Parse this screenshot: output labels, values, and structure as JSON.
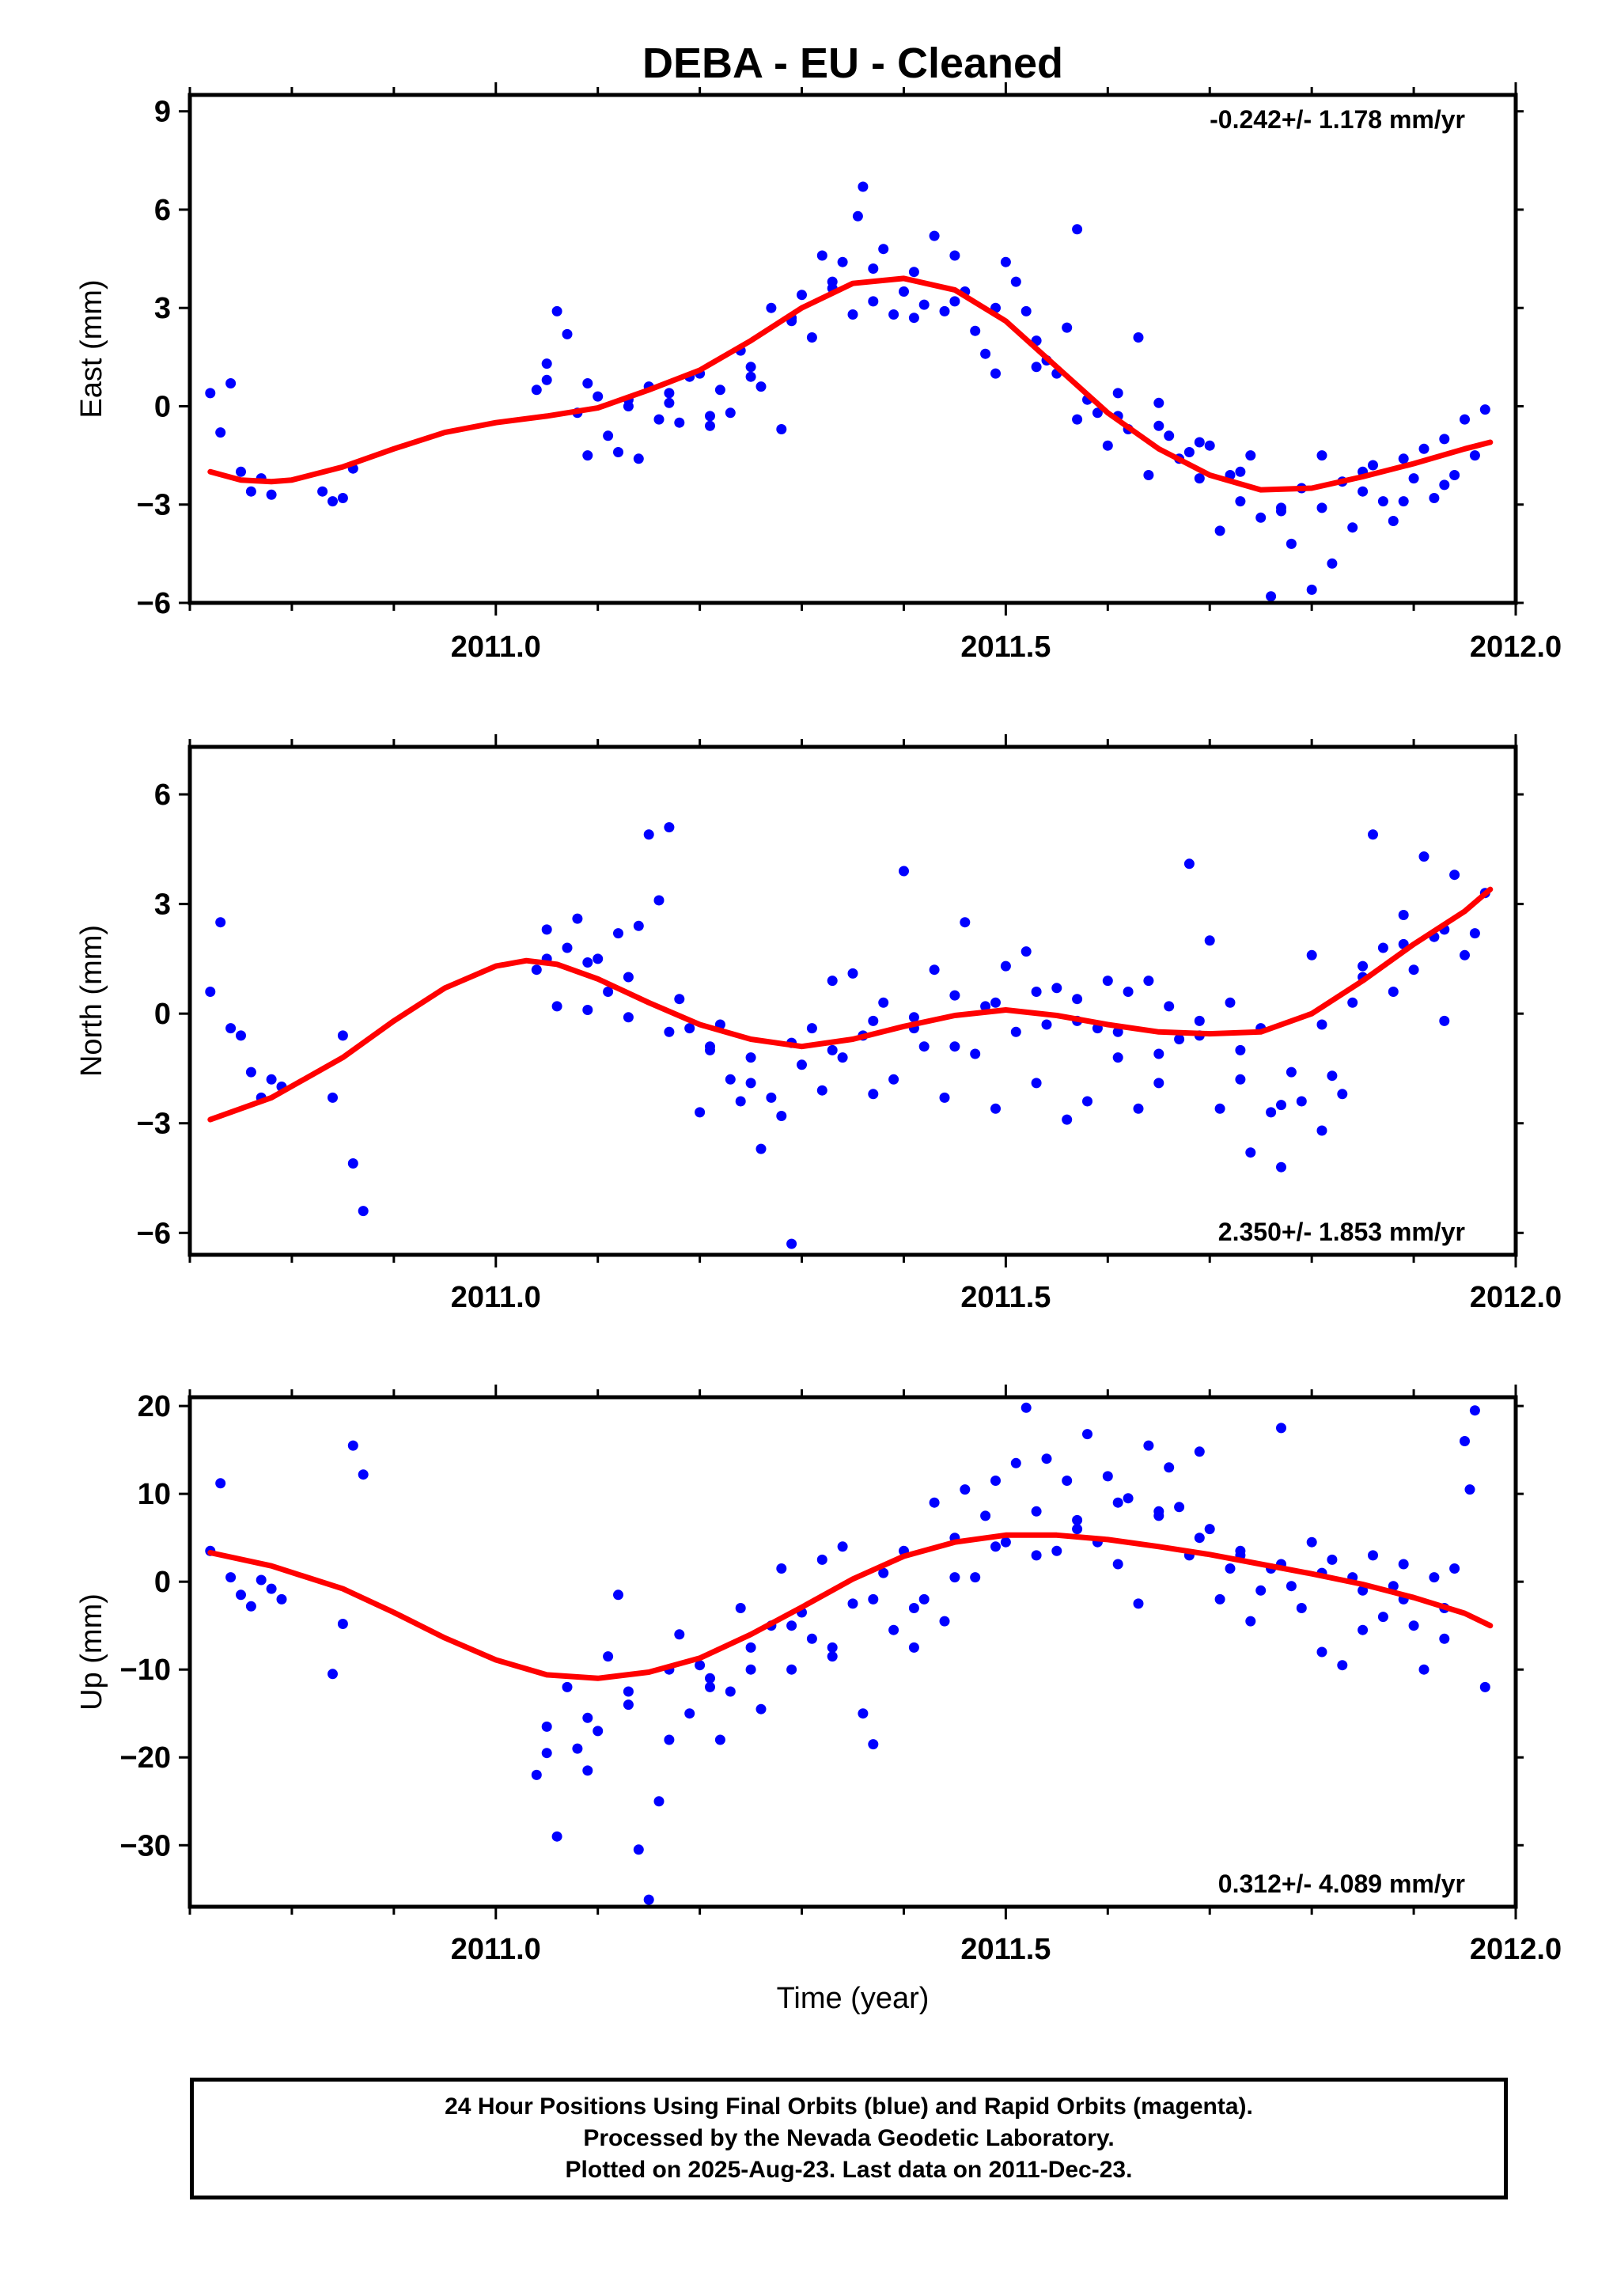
{
  "title": "DEBA  - EU - Cleaned",
  "xlabel": "Time (year)",
  "footer": {
    "line1": "24 Hour Positions Using Final Orbits (blue) and Rapid Orbits (magenta).",
    "line2": "Processed by the Nevada Geodetic Laboratory.",
    "line3": "Plotted on 2025-Aug-23. Last data on 2011-Dec-23."
  },
  "colors": {
    "points": "#0000ff",
    "fit": "#ff0000",
    "axes": "#000000"
  },
  "chart_data": [
    {
      "type": "scatter",
      "title": "DEBA  - EU - Cleaned",
      "ylabel": "East (mm)",
      "rate": "-0.242+/- 1.178 mm/yr",
      "rate_position": "top-right",
      "xlim": [
        2010.7,
        2012.0
      ],
      "ylim": [
        -6,
        9.5
      ],
      "x_ticks": [
        2011.0,
        2011.5,
        2012.0
      ],
      "x_tick_labels": [
        "2011.0",
        "2011.5",
        "2012.0"
      ],
      "y_ticks": [
        -6,
        -3,
        0,
        3,
        6,
        9
      ],
      "y_tick_labels": [
        "−6",
        "−3",
        "0",
        "3",
        "6",
        "9"
      ],
      "grid": false,
      "points": {
        "x": [
          2010.72,
          2010.73,
          2010.74,
          2010.75,
          2010.76,
          2010.77,
          2010.78,
          2010.83,
          2010.84,
          2010.85,
          2010.86,
          2011.04,
          2011.05,
          2011.06,
          2011.07,
          2011.08,
          2011.09,
          2011.1,
          2011.11,
          2011.12,
          2011.13,
          2011.14,
          2011.15,
          2011.16,
          2011.17,
          2011.18,
          2011.19,
          2011.2,
          2011.21,
          2011.22,
          2011.23,
          2011.24,
          2011.25,
          2011.26,
          2011.27,
          2011.28,
          2011.29,
          2011.3,
          2011.31,
          2011.32,
          2011.33,
          2011.34,
          2011.35,
          2011.355,
          2011.36,
          2011.37,
          2011.38,
          2011.39,
          2011.4,
          2011.41,
          2011.42,
          2011.43,
          2011.44,
          2011.45,
          2011.46,
          2011.47,
          2011.48,
          2011.49,
          2011.5,
          2011.51,
          2011.52,
          2011.53,
          2011.54,
          2011.55,
          2011.56,
          2011.57,
          2011.58,
          2011.59,
          2011.6,
          2011.61,
          2011.62,
          2011.63,
          2011.64,
          2011.65,
          2011.66,
          2011.67,
          2011.68,
          2011.69,
          2011.7,
          2011.71,
          2011.72,
          2011.73,
          2011.74,
          2011.75,
          2011.76,
          2011.77,
          2011.78,
          2011.79,
          2011.8,
          2011.81,
          2011.82,
          2011.83,
          2011.84,
          2011.85,
          2011.86,
          2011.87,
          2011.88,
          2011.89,
          2011.9,
          2011.91,
          2011.92,
          2011.93,
          2011.94,
          2011.95,
          2011.96,
          2011.97,
          2011.05,
          2011.09,
          2011.13,
          2011.17,
          2011.21,
          2011.25,
          2011.29,
          2011.33,
          2011.37,
          2011.41,
          2011.45,
          2011.49,
          2011.53,
          2011.57,
          2011.61,
          2011.65,
          2011.69,
          2011.73,
          2011.77,
          2011.81,
          2011.85,
          2011.89,
          2011.93
        ],
        "y": [
          0.4,
          -0.8,
          0.7,
          -2.0,
          -2.6,
          -2.2,
          -2.7,
          -2.6,
          -2.9,
          -2.8,
          -1.9,
          0.5,
          0.8,
          2.9,
          2.2,
          -0.2,
          -1.5,
          0.3,
          -0.9,
          -1.4,
          0.0,
          -1.6,
          0.6,
          -0.4,
          0.1,
          -0.5,
          0.9,
          1.0,
          -0.3,
          0.5,
          -0.2,
          1.7,
          1.2,
          0.6,
          3.0,
          -0.7,
          2.6,
          3.4,
          2.1,
          4.6,
          3.8,
          4.4,
          2.8,
          5.8,
          6.7,
          3.2,
          4.8,
          2.8,
          3.5,
          4.1,
          3.1,
          5.2,
          2.9,
          4.6,
          3.5,
          2.3,
          1.6,
          3.0,
          4.4,
          3.8,
          2.9,
          1.2,
          1.4,
          1.0,
          2.4,
          5.4,
          0.2,
          -0.2,
          -1.2,
          0.4,
          -0.7,
          2.1,
          -2.1,
          0.1,
          -0.9,
          -1.6,
          -1.4,
          -2.2,
          -1.2,
          -3.8,
          -2.1,
          -2.9,
          -1.5,
          -3.4,
          -5.8,
          -3.2,
          -4.2,
          -2.5,
          -5.6,
          -3.1,
          -4.8,
          -2.3,
          -3.7,
          -2.6,
          -1.8,
          -2.9,
          -3.5,
          -1.6,
          -2.2,
          -1.3,
          -2.8,
          -1.0,
          -2.1,
          -0.4,
          -1.5,
          -0.1,
          1.3,
          0.7,
          0.2,
          0.4,
          -0.6,
          0.9,
          2.7,
          3.6,
          4.2,
          2.7,
          3.2,
          1.0,
          2.0,
          -0.4,
          -0.3,
          -0.6,
          -1.1,
          -2.0,
          -3.1,
          -1.5,
          -2.0,
          -2.9,
          -2.4
        ]
      },
      "fit": {
        "x": [
          2010.72,
          2010.75,
          2010.78,
          2010.8,
          2010.85,
          2010.9,
          2010.95,
          2011.0,
          2011.05,
          2011.1,
          2011.15,
          2011.2,
          2011.25,
          2011.3,
          2011.35,
          2011.4,
          2011.45,
          2011.5,
          2011.55,
          2011.6,
          2011.65,
          2011.7,
          2011.75,
          2011.8,
          2011.85,
          2011.9,
          2011.95,
          2011.975
        ],
        "y": [
          -2.0,
          -2.25,
          -2.3,
          -2.25,
          -1.85,
          -1.3,
          -0.8,
          -0.5,
          -0.3,
          -0.05,
          0.5,
          1.1,
          2.0,
          3.0,
          3.75,
          3.9,
          3.55,
          2.6,
          1.2,
          -0.2,
          -1.3,
          -2.1,
          -2.55,
          -2.5,
          -2.15,
          -1.75,
          -1.3,
          -1.1
        ]
      }
    },
    {
      "type": "scatter",
      "ylabel": "North (mm)",
      "rate": "2.350+/- 1.853 mm/yr",
      "rate_position": "bottom-right",
      "xlim": [
        2010.7,
        2012.0
      ],
      "ylim": [
        -6.6,
        7.3
      ],
      "x_ticks": [
        2011.0,
        2011.5,
        2012.0
      ],
      "x_tick_labels": [
        "2011.0",
        "2011.5",
        "2012.0"
      ],
      "y_ticks": [
        -6,
        -3,
        0,
        3,
        6
      ],
      "y_tick_labels": [
        "−6",
        "−3",
        "0",
        "3",
        "6"
      ],
      "grid": false,
      "points": {
        "x": [
          2010.72,
          2010.73,
          2010.74,
          2010.75,
          2010.76,
          2010.77,
          2010.78,
          2010.79,
          2010.84,
          2010.85,
          2010.86,
          2010.87,
          2011.04,
          2011.05,
          2011.06,
          2011.07,
          2011.08,
          2011.09,
          2011.1,
          2011.11,
          2011.12,
          2011.13,
          2011.14,
          2011.15,
          2011.16,
          2011.17,
          2011.18,
          2011.19,
          2011.2,
          2011.21,
          2011.22,
          2011.23,
          2011.24,
          2011.25,
          2011.26,
          2011.27,
          2011.28,
          2011.29,
          2011.3,
          2011.31,
          2011.32,
          2011.33,
          2011.34,
          2011.35,
          2011.36,
          2011.37,
          2011.38,
          2011.39,
          2011.4,
          2011.41,
          2011.42,
          2011.43,
          2011.44,
          2011.45,
          2011.46,
          2011.47,
          2011.48,
          2011.49,
          2011.5,
          2011.51,
          2011.52,
          2011.53,
          2011.54,
          2011.55,
          2011.56,
          2011.57,
          2011.58,
          2011.59,
          2011.6,
          2011.61,
          2011.62,
          2011.63,
          2011.64,
          2011.65,
          2011.66,
          2011.67,
          2011.68,
          2011.69,
          2011.7,
          2011.71,
          2011.72,
          2011.73,
          2011.74,
          2011.75,
          2011.76,
          2011.77,
          2011.78,
          2011.79,
          2011.8,
          2011.81,
          2011.82,
          2011.83,
          2011.84,
          2011.85,
          2011.86,
          2011.87,
          2011.88,
          2011.89,
          2011.9,
          2011.91,
          2011.92,
          2011.93,
          2011.94,
          2011.95,
          2011.96,
          2011.97,
          2011.05,
          2011.09,
          2011.13,
          2011.17,
          2011.21,
          2011.25,
          2011.29,
          2011.33,
          2011.37,
          2011.41,
          2011.45,
          2011.49,
          2011.53,
          2011.57,
          2011.61,
          2011.65,
          2011.69,
          2011.73,
          2011.77,
          2011.81,
          2011.85,
          2011.89,
          2011.93
        ],
        "y": [
          0.6,
          2.5,
          -0.4,
          -0.6,
          -1.6,
          -2.3,
          -1.8,
          -2.0,
          -2.3,
          -0.6,
          -4.1,
          -5.4,
          1.2,
          2.3,
          0.2,
          1.8,
          2.6,
          0.1,
          1.5,
          0.6,
          2.2,
          -0.1,
          2.4,
          4.9,
          3.1,
          5.1,
          0.4,
          -0.4,
          -2.7,
          -1.0,
          -0.3,
          -1.8,
          -2.4,
          -1.2,
          -3.7,
          -2.3,
          -2.8,
          -6.3,
          -1.4,
          -0.4,
          -2.1,
          0.9,
          -1.2,
          1.1,
          -0.6,
          -2.2,
          0.3,
          -1.8,
          3.9,
          -0.1,
          -0.9,
          1.2,
          -2.3,
          0.5,
          2.5,
          -1.1,
          0.2,
          -2.6,
          1.3,
          -0.5,
          1.7,
          -1.9,
          -0.3,
          0.7,
          -2.9,
          0.4,
          -2.4,
          -0.4,
          0.9,
          -1.2,
          0.6,
          -2.6,
          0.9,
          -1.9,
          0.2,
          -0.7,
          4.1,
          -0.2,
          2.0,
          -2.6,
          0.3,
          -1.8,
          -3.8,
          -0.4,
          -2.7,
          -4.2,
          -1.6,
          -2.4,
          1.6,
          -3.2,
          -1.7,
          -2.2,
          0.3,
          1.3,
          4.9,
          1.8,
          0.6,
          2.7,
          1.2,
          4.3,
          2.1,
          -0.2,
          3.8,
          1.6,
          2.2,
          3.3,
          1.5,
          1.4,
          1.0,
          -0.5,
          -0.9,
          -1.9,
          -0.8,
          -1.0,
          -0.2,
          -0.4,
          -0.9,
          0.3,
          0.6,
          -0.2,
          -0.5,
          -1.1,
          -0.6,
          -1.0,
          -2.5,
          -0.3,
          1.0,
          1.9,
          2.3
        ]
      },
      "fit": {
        "x": [
          2010.72,
          2010.78,
          2010.85,
          2010.9,
          2010.95,
          2011.0,
          2011.03,
          2011.06,
          2011.1,
          2011.15,
          2011.2,
          2011.25,
          2011.3,
          2011.35,
          2011.4,
          2011.45,
          2011.5,
          2011.55,
          2011.6,
          2011.65,
          2011.7,
          2011.75,
          2011.8,
          2011.85,
          2011.9,
          2011.95,
          2011.975
        ],
        "y": [
          -2.9,
          -2.3,
          -1.2,
          -0.2,
          0.7,
          1.3,
          1.45,
          1.35,
          0.95,
          0.3,
          -0.3,
          -0.7,
          -0.9,
          -0.7,
          -0.35,
          -0.05,
          0.1,
          -0.05,
          -0.3,
          -0.5,
          -0.55,
          -0.5,
          0.0,
          0.9,
          1.9,
          2.8,
          3.4
        ]
      }
    },
    {
      "type": "scatter",
      "ylabel": "Up (mm)",
      "xlabel": "Time (year)",
      "rate": "0.312+/- 4.089 mm/yr",
      "rate_position": "bottom-right",
      "xlim": [
        2010.7,
        2012.0
      ],
      "ylim": [
        -37,
        21
      ],
      "x_ticks": [
        2011.0,
        2011.5,
        2012.0
      ],
      "x_tick_labels": [
        "2011.0",
        "2011.5",
        "2012.0"
      ],
      "y_ticks": [
        -30,
        -20,
        -10,
        0,
        10,
        20
      ],
      "y_tick_labels": [
        "−30",
        "−20",
        "−10",
        "0",
        "10",
        "20"
      ],
      "grid": false,
      "points": {
        "x": [
          2010.72,
          2010.73,
          2010.74,
          2010.75,
          2010.76,
          2010.77,
          2010.78,
          2010.79,
          2010.84,
          2010.85,
          2010.86,
          2010.87,
          2011.04,
          2011.05,
          2011.06,
          2011.07,
          2011.08,
          2011.09,
          2011.1,
          2011.11,
          2011.12,
          2011.13,
          2011.14,
          2011.15,
          2011.16,
          2011.17,
          2011.18,
          2011.19,
          2011.2,
          2011.21,
          2011.22,
          2011.23,
          2011.24,
          2011.25,
          2011.26,
          2011.27,
          2011.28,
          2011.29,
          2011.3,
          2011.31,
          2011.32,
          2011.33,
          2011.34,
          2011.35,
          2011.36,
          2011.37,
          2011.38,
          2011.39,
          2011.4,
          2011.41,
          2011.42,
          2011.43,
          2011.44,
          2011.45,
          2011.46,
          2011.47,
          2011.48,
          2011.49,
          2011.5,
          2011.51,
          2011.52,
          2011.53,
          2011.54,
          2011.55,
          2011.56,
          2011.57,
          2011.58,
          2011.59,
          2011.6,
          2011.61,
          2011.62,
          2011.63,
          2011.64,
          2011.65,
          2011.66,
          2011.67,
          2011.68,
          2011.69,
          2011.7,
          2011.71,
          2011.72,
          2011.73,
          2011.74,
          2011.75,
          2011.76,
          2011.77,
          2011.78,
          2011.79,
          2011.8,
          2011.81,
          2011.82,
          2011.83,
          2011.84,
          2011.85,
          2011.86,
          2011.87,
          2011.88,
          2011.89,
          2011.9,
          2011.91,
          2011.92,
          2011.93,
          2011.94,
          2011.95,
          2011.96,
          2011.97,
          2011.05,
          2011.09,
          2011.13,
          2011.17,
          2011.21,
          2011.25,
          2011.29,
          2011.33,
          2011.37,
          2011.41,
          2011.45,
          2011.49,
          2011.53,
          2011.57,
          2011.61,
          2011.65,
          2011.69,
          2011.73,
          2011.77,
          2011.81,
          2011.85,
          2011.89,
          2011.93,
          2011.955
        ],
        "y": [
          3.5,
          11.2,
          0.5,
          -1.5,
          -2.8,
          0.2,
          -0.8,
          -2.0,
          -10.5,
          -4.8,
          15.5,
          12.2,
          -22.0,
          -16.5,
          -29.0,
          -12.0,
          -19.0,
          -15.5,
          -17.0,
          -8.5,
          -1.5,
          -12.5,
          -30.5,
          -36.2,
          -25.0,
          -18.0,
          -6.0,
          -15.0,
          -9.5,
          -11.0,
          -18.0,
          -12.5,
          -3.0,
          -7.5,
          -14.5,
          -5.0,
          1.5,
          -10.0,
          -3.5,
          -6.5,
          2.5,
          -8.5,
          4.0,
          -2.5,
          -15.0,
          -18.5,
          1.0,
          -5.5,
          3.5,
          -7.5,
          -2.0,
          9.0,
          -4.5,
          5.0,
          10.5,
          0.5,
          7.5,
          11.5,
          4.5,
          13.5,
          19.8,
          8.0,
          14.0,
          3.5,
          11.5,
          7.0,
          16.8,
          4.5,
          12.0,
          2.0,
          9.5,
          -2.5,
          15.5,
          7.5,
          13.0,
          8.5,
          3.0,
          14.8,
          6.0,
          -2.0,
          1.5,
          3.0,
          -4.5,
          -1.0,
          1.5,
          17.5,
          -0.5,
          -3.0,
          4.5,
          -8.0,
          2.5,
          -9.5,
          0.5,
          -5.5,
          3.0,
          -4.0,
          -0.5,
          2.0,
          -5.0,
          -10.0,
          0.5,
          -6.5,
          1.5,
          16.0,
          19.5,
          -12.0,
          -19.5,
          -21.5,
          -14.0,
          -10.0,
          -12.0,
          -10.0,
          -5.0,
          -7.5,
          -2.0,
          -3.0,
          0.5,
          4.0,
          3.0,
          6.0,
          9.0,
          8.0,
          5.0,
          3.5,
          2.0,
          1.0,
          -1.0,
          -2.0,
          -3.0,
          10.5
        ]
      },
      "fit": {
        "x": [
          2010.72,
          2010.78,
          2010.85,
          2010.9,
          2010.95,
          2011.0,
          2011.05,
          2011.1,
          2011.15,
          2011.2,
          2011.25,
          2011.3,
          2011.35,
          2011.4,
          2011.45,
          2011.5,
          2011.55,
          2011.6,
          2011.65,
          2011.7,
          2011.75,
          2011.8,
          2011.85,
          2011.9,
          2011.95,
          2011.975
        ],
        "y": [
          3.3,
          1.8,
          -0.8,
          -3.5,
          -6.4,
          -8.9,
          -10.6,
          -11.0,
          -10.3,
          -8.7,
          -6.0,
          -2.9,
          0.3,
          2.9,
          4.5,
          5.3,
          5.3,
          4.8,
          4.0,
          3.1,
          2.0,
          0.9,
          -0.3,
          -1.8,
          -3.6,
          -5.0
        ]
      }
    }
  ]
}
